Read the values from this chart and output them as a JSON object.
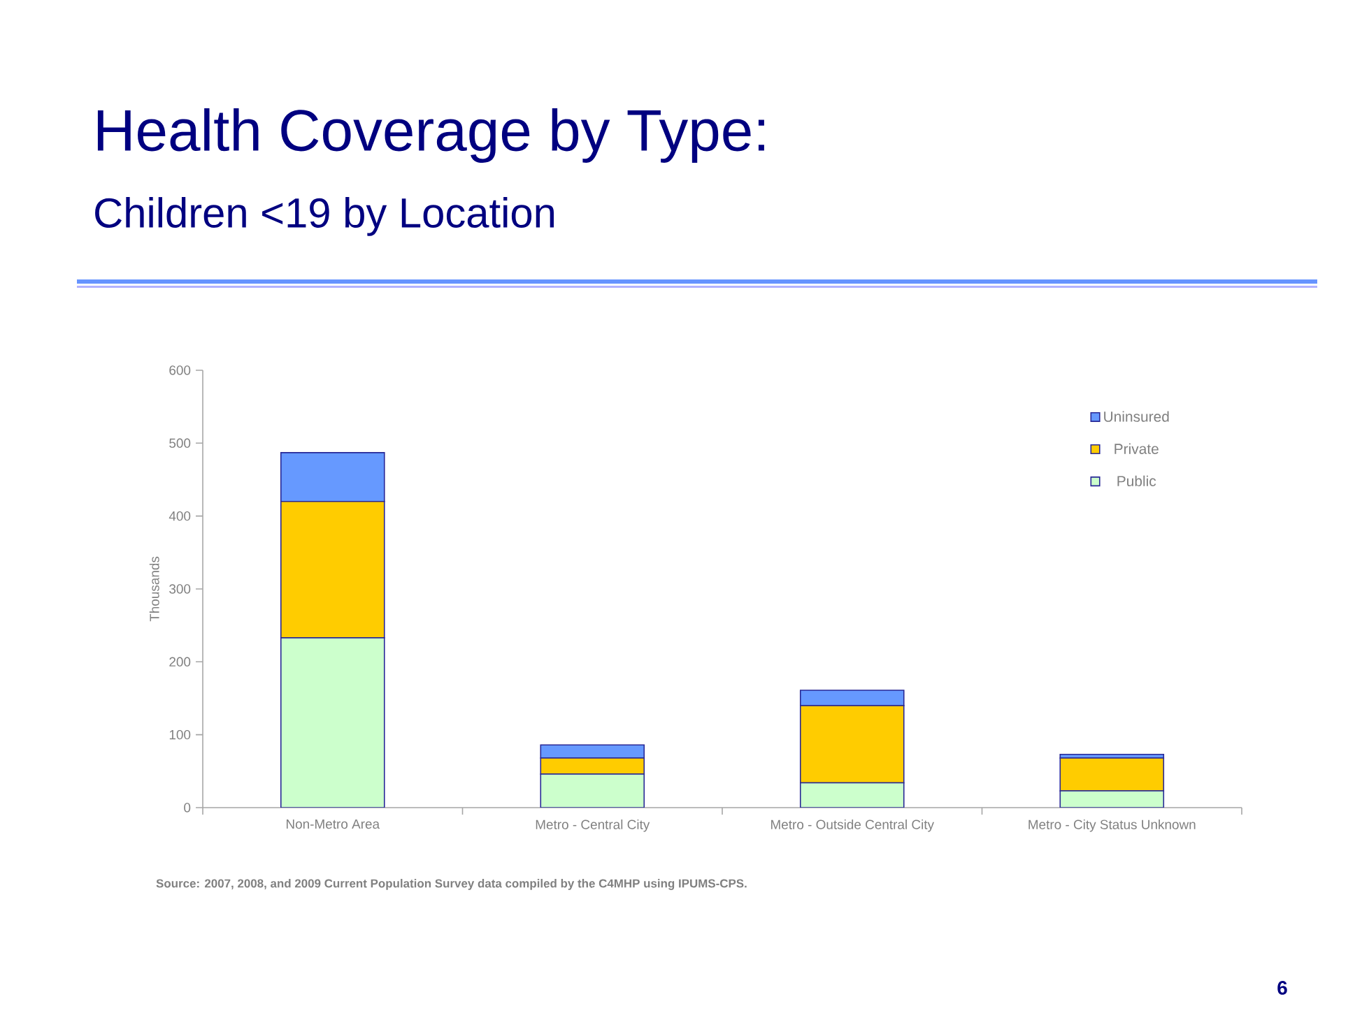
{
  "chart_data": {
    "type": "bar",
    "stacked": true,
    "title": "Health Coverage by Type:",
    "subtitle": "Children <19 by Location",
    "ylabel": "Thousands",
    "categories": [
      "Non-Metro Area",
      "Metro - Central City",
      "Metro - Outside Central City",
      "Metro - City Status Unknown"
    ],
    "series": [
      {
        "name": "Public",
        "color": "#ccffcc",
        "values": [
          233,
          46,
          34,
          23
        ]
      },
      {
        "name": "Private",
        "color": "#ffcc00",
        "values": [
          187,
          22,
          106,
          45
        ]
      },
      {
        "name": "Uninsured",
        "color": "#6699ff",
        "values": [
          67,
          18,
          21,
          5
        ]
      }
    ],
    "ylim": [
      0,
      600
    ],
    "yticks": [
      0,
      100,
      200,
      300,
      400,
      500,
      600
    ],
    "legend": "top right",
    "annotations": [
      "Source:  2007, 2008,  and 2009 Current Population Survey data compiled by the C4MHP using IPUMS-CPS.",
      "6"
    ]
  }
}
